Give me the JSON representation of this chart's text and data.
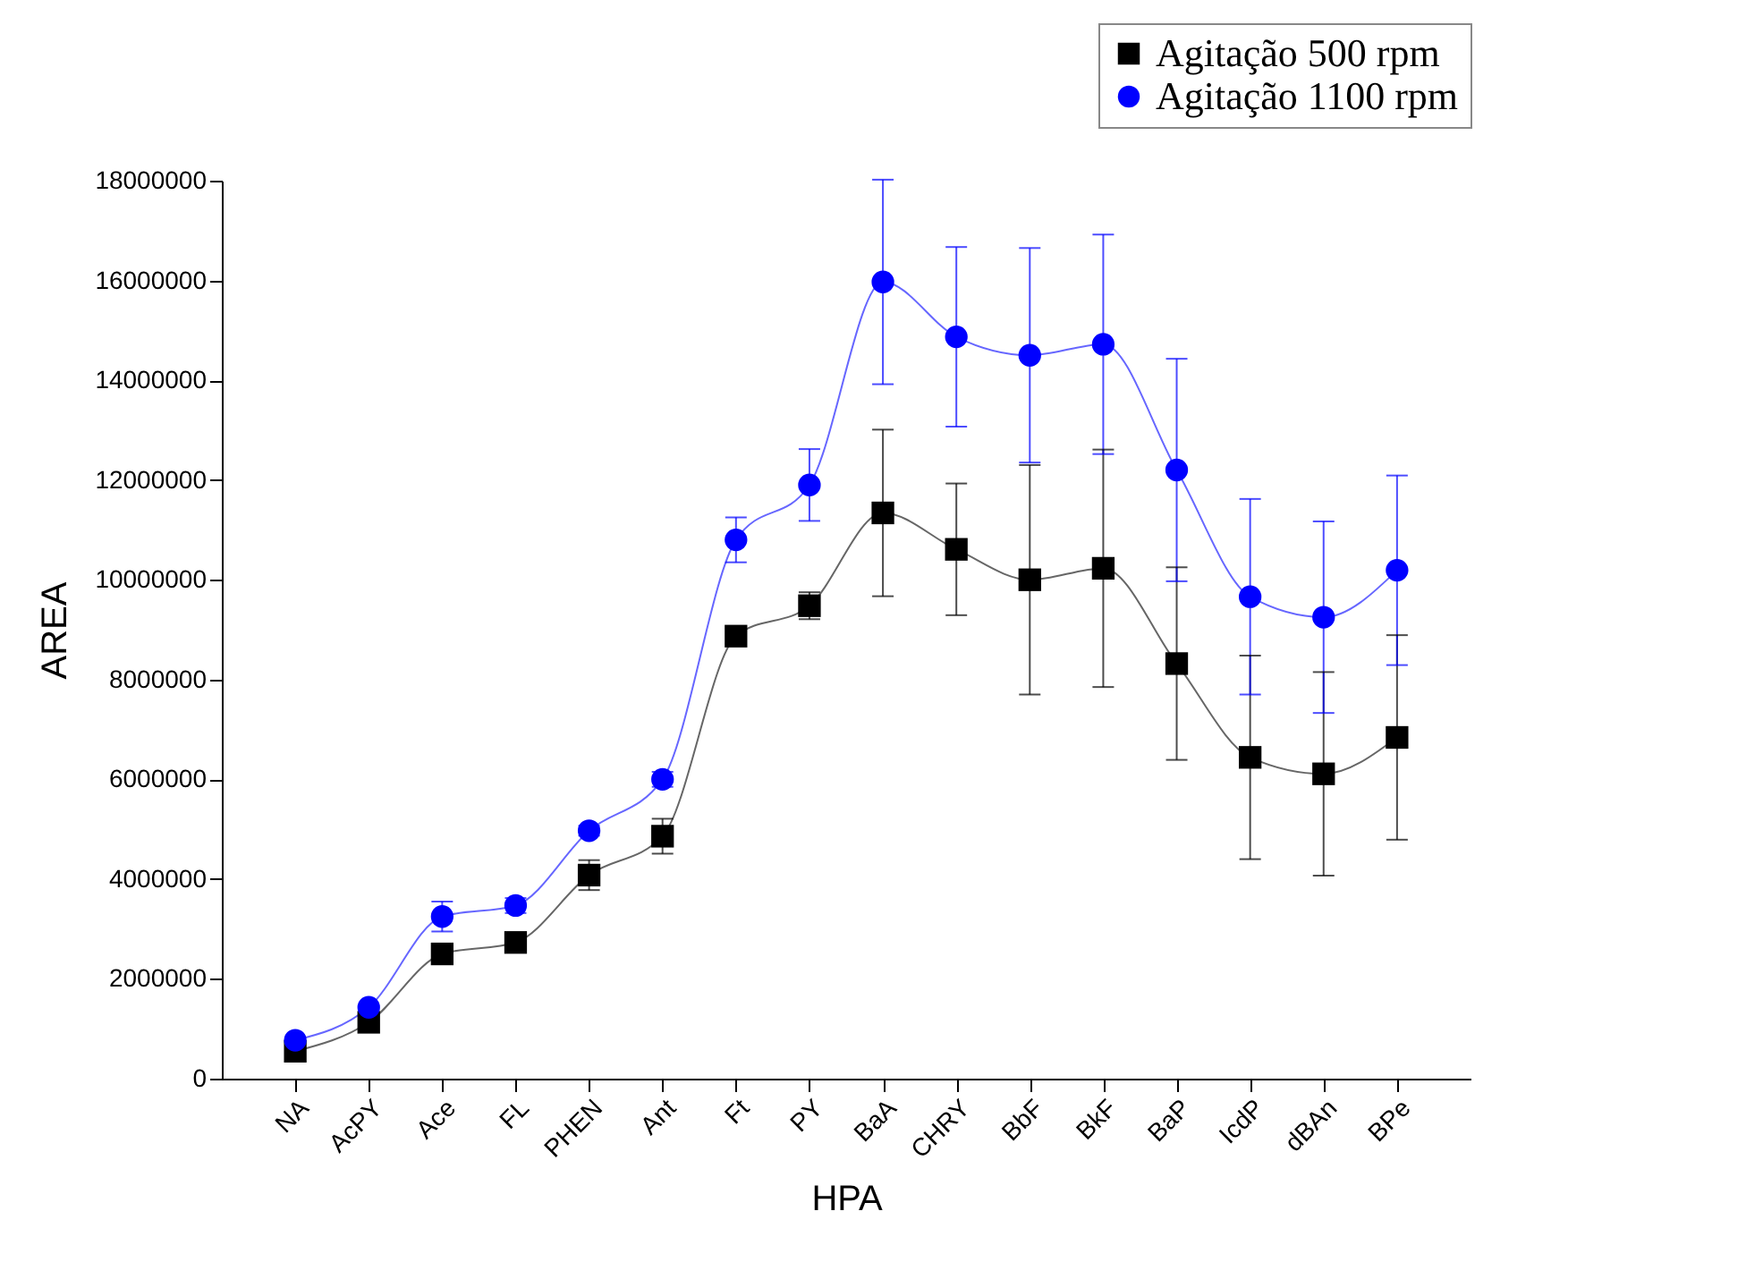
{
  "chart_data": {
    "type": "line",
    "xlabel": "HPA",
    "ylabel": "AREA",
    "categories": [
      "NA",
      "AcPY",
      "Ace",
      "FL",
      "PHEN",
      "Ant",
      "Ft",
      "PY",
      "BaA",
      "CHRY",
      "BbF",
      "BkF",
      "BaP",
      "IcdP",
      "dBAn",
      "BPe"
    ],
    "series": [
      {
        "name": "Agitação 500 rpm",
        "color": "#000000",
        "marker": "square",
        "values": [
          550000,
          1130000,
          2500000,
          2730000,
          4080000,
          4860000,
          8870000,
          9480000,
          11340000,
          10610000,
          10000000,
          10230000,
          8320000,
          6440000,
          6110000,
          6840000
        ],
        "errors": [
          null,
          null,
          100000,
          null,
          300000,
          350000,
          150000,
          270000,
          1670000,
          1320000,
          2300000,
          2380000,
          1930000,
          2040000,
          2040000,
          2050000
        ]
      },
      {
        "name": "Agitação 1100 rpm",
        "color": "#0000ff",
        "marker": "circle",
        "values": [
          770000,
          1430000,
          3250000,
          3470000,
          4970000,
          6000000,
          10800000,
          11900000,
          15970000,
          14870000,
          14500000,
          14720000,
          12200000,
          9660000,
          9250000,
          10190000
        ],
        "errors": [
          null,
          null,
          300000,
          150000,
          100000,
          150000,
          450000,
          720000,
          2050000,
          1800000,
          2150000,
          2200000,
          2230000,
          1960000,
          1920000,
          1900000
        ]
      }
    ],
    "ylim": [
      0,
      18000000
    ],
    "yticks": [
      0,
      2000000,
      4000000,
      6000000,
      8000000,
      10000000,
      12000000,
      14000000,
      16000000,
      18000000
    ],
    "grid": false,
    "legend": "top right",
    "line_style": "solid"
  }
}
